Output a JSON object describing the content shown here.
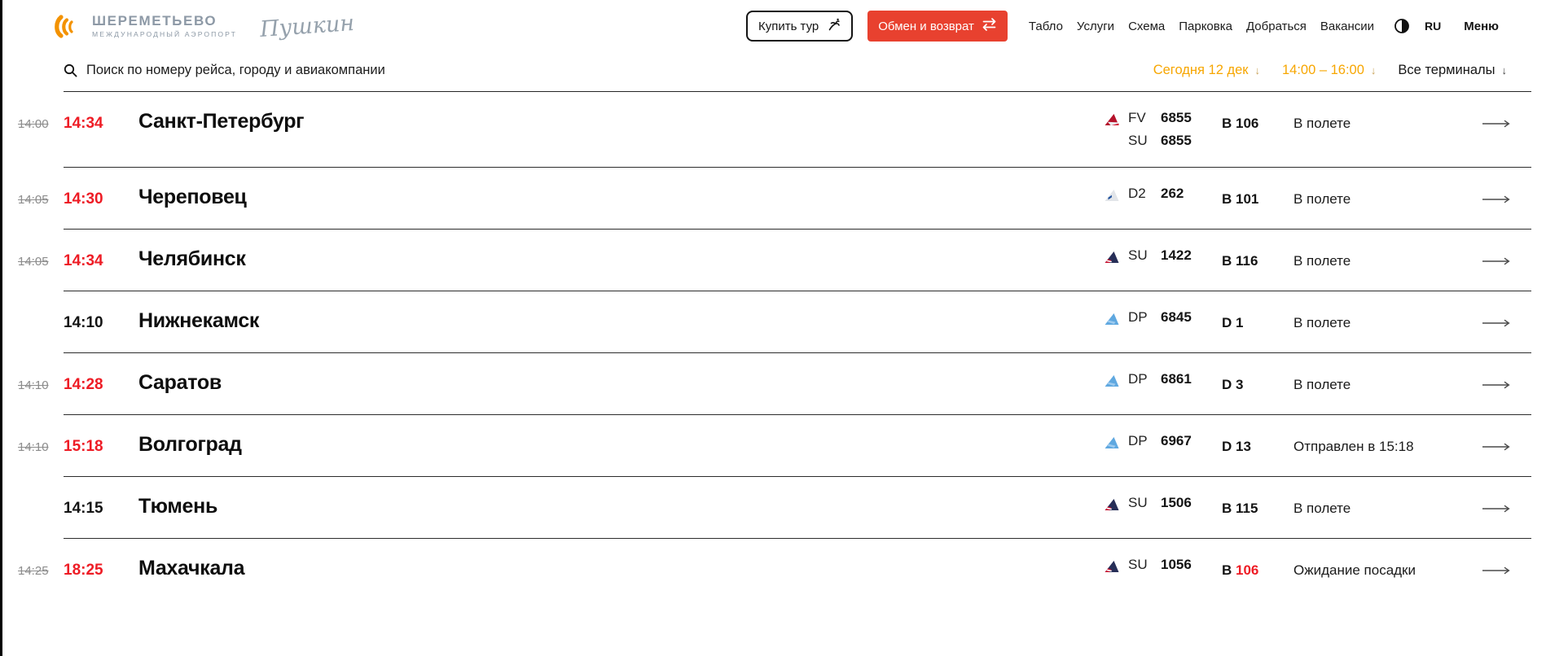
{
  "brand": {
    "airport_title": "ШЕРЕМЕТЬЕВО",
    "airport_subtitle": "МЕЖДУНАРОДНЫЙ АЭРОПОРТ",
    "signature": "Пушкин"
  },
  "header": {
    "buy_tour": "Купить тур",
    "exchange_return": "Обмен и возврат",
    "nav": [
      {
        "label": "Табло"
      },
      {
        "label": "Услуги"
      },
      {
        "label": "Схема"
      },
      {
        "label": "Парковка"
      },
      {
        "label": "Добраться"
      },
      {
        "label": "Вакансии"
      }
    ],
    "language": "RU",
    "menu": "Меню"
  },
  "search": {
    "placeholder": "Поиск по номеру рейса, городу и авиакомпании"
  },
  "filters": {
    "date": "Сегодня 12 дек",
    "time_range": "14:00 – 16:00",
    "terminal": "Все терминалы"
  },
  "icons": {
    "arrow_down": "↓"
  },
  "colors": {
    "time_red": "#ee1c25",
    "button_red": "#e8412f",
    "filter_orange": "#f7a600",
    "brand_gray": "#8d99a6",
    "logo_orange": "#f39200"
  },
  "flights": [
    {
      "scheduled": "14:00",
      "actual": "14:34",
      "delayed": true,
      "city": "Санкт-Петербург",
      "legs": [
        {
          "airline": "FV",
          "number": "6855",
          "logo": "rossiya-tail"
        },
        {
          "airline": "SU",
          "number": "6855",
          "logo": null
        }
      ],
      "gate_zone": "B",
      "gate_number": "106",
      "gate_alert": false,
      "status": "В полете"
    },
    {
      "scheduled": "14:05",
      "actual": "14:30",
      "delayed": true,
      "city": "Череповец",
      "legs": [
        {
          "airline": "D2",
          "number": "262",
          "logo": "severstal-tail"
        }
      ],
      "gate_zone": "B",
      "gate_number": "101",
      "gate_alert": false,
      "status": "В полете"
    },
    {
      "scheduled": "14:05",
      "actual": "14:34",
      "delayed": true,
      "city": "Челябинск",
      "legs": [
        {
          "airline": "SU",
          "number": "1422",
          "logo": "aeroflot-tail"
        }
      ],
      "gate_zone": "B",
      "gate_number": "116",
      "gate_alert": false,
      "status": "В полете"
    },
    {
      "scheduled": null,
      "actual": "14:10",
      "delayed": false,
      "city": "Нижнекамск",
      "legs": [
        {
          "airline": "DP",
          "number": "6845",
          "logo": "pobeda-tail"
        }
      ],
      "gate_zone": "D",
      "gate_number": "1",
      "gate_alert": false,
      "status": "В полете"
    },
    {
      "scheduled": "14:10",
      "actual": "14:28",
      "delayed": true,
      "city": "Саратов",
      "legs": [
        {
          "airline": "DP",
          "number": "6861",
          "logo": "pobeda-tail"
        }
      ],
      "gate_zone": "D",
      "gate_number": "3",
      "gate_alert": false,
      "status": "В полете"
    },
    {
      "scheduled": "14:10",
      "actual": "15:18",
      "delayed": true,
      "city": "Волгоград",
      "legs": [
        {
          "airline": "DP",
          "number": "6967",
          "logo": "pobeda-tail"
        }
      ],
      "gate_zone": "D",
      "gate_number": "13",
      "gate_alert": false,
      "status": "Отправлен в 15:18"
    },
    {
      "scheduled": null,
      "actual": "14:15",
      "delayed": false,
      "city": "Тюмень",
      "legs": [
        {
          "airline": "SU",
          "number": "1506",
          "logo": "aeroflot-tail"
        }
      ],
      "gate_zone": "B",
      "gate_number": "115",
      "gate_alert": false,
      "status": "В полете"
    },
    {
      "scheduled": "14:25",
      "actual": "18:25",
      "delayed": true,
      "city": "Махачкала",
      "legs": [
        {
          "airline": "SU",
          "number": "1056",
          "logo": "aeroflot-tail"
        }
      ],
      "gate_zone": "B",
      "gate_number": "106",
      "gate_alert": true,
      "status": "Ожидание посадки"
    }
  ]
}
